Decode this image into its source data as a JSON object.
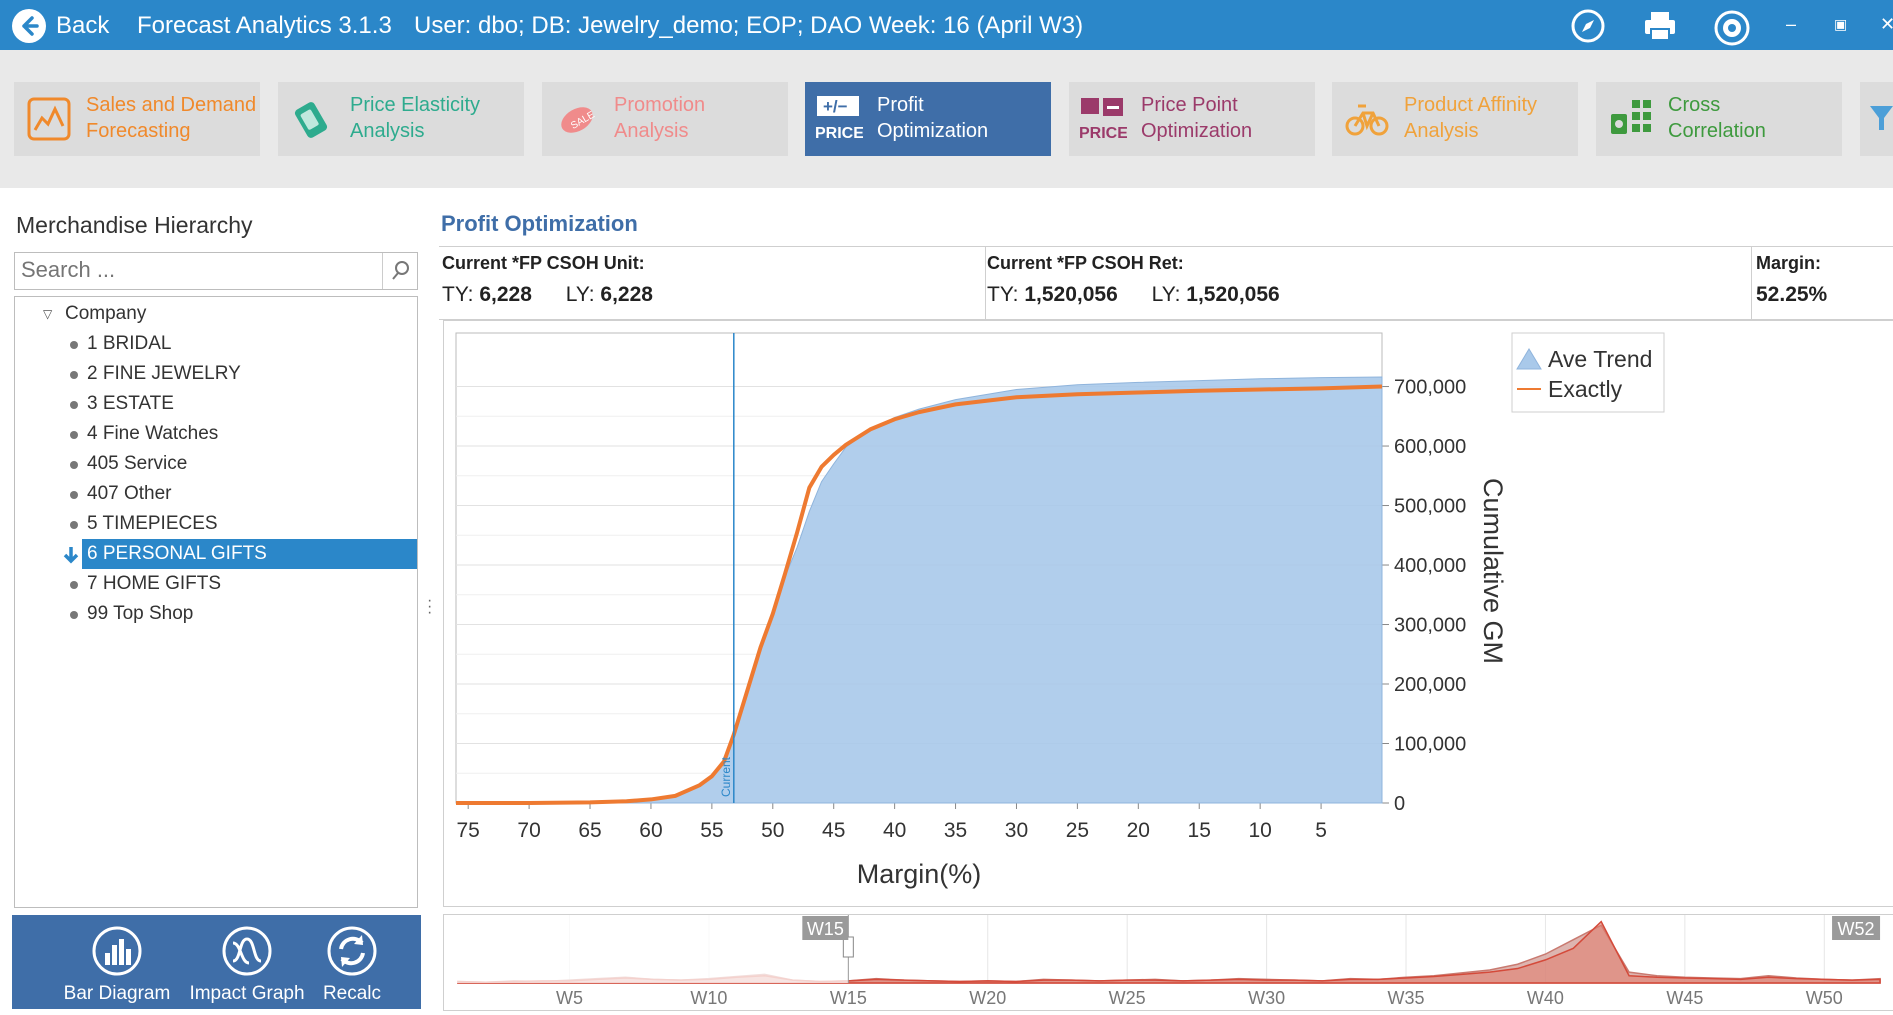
{
  "titlebar": {
    "back_label": "Back",
    "app_title": "Forecast Analytics 3.1.3",
    "context": "User: dbo; DB: Jewelry_demo; EOP; DAO Week: 16 (April W3)"
  },
  "modules": [
    {
      "label": "Sales and Demand\nForecasting",
      "color": "#f0892b",
      "icon": "sales-forecast-icon",
      "active": false
    },
    {
      "label": "Price Elasticity\nAnalysis",
      "color": "#2eab8e",
      "icon": "price-tag-icon",
      "active": false
    },
    {
      "label": "Promotion\nAnalysis",
      "color": "#f08b8b",
      "icon": "sale-tag-icon",
      "active": false
    },
    {
      "label": "Profit\nOptimization",
      "color": "#ffffff",
      "icon": "price-plus-minus-icon",
      "active": true
    },
    {
      "label": "Price Point\nOptimization",
      "color": "#9b3a6a",
      "icon": "price-point-icon",
      "active": false
    },
    {
      "label": "Product Affinity\nAnalysis",
      "color": "#f0a23b",
      "icon": "bicycle-icon",
      "active": false
    },
    {
      "label": "Cross\nCorrelation",
      "color": "#3e9a3e",
      "icon": "cross-correlation-icon",
      "active": false
    }
  ],
  "module_icon_texts": {
    "price": "PRICE",
    "plusminus": "+/−",
    "sale": "SALE"
  },
  "hierarchy": {
    "title": "Merchandise Hierarchy",
    "search_placeholder": "Search ...",
    "root": "Company",
    "items": [
      "1 BRIDAL",
      "2 FINE JEWELRY",
      "3 ESTATE",
      "4 Fine Watches",
      "405 Service",
      "407 Other",
      "5 TIMEPIECES",
      "6 PERSONAL GIFTS",
      "7 HOME GIFTS",
      "99 Top Shop"
    ],
    "selected": "6 PERSONAL GIFTS"
  },
  "toolbar": {
    "bar_diagram": "Bar Diagram",
    "impact_graph": "Impact Graph",
    "recalc": "Recalc"
  },
  "profit": {
    "title": "Profit Optimization",
    "unit_header": "Current *FP CSOH Unit:",
    "ret_header": "Current *FP CSOH Ret:",
    "margin_header": "Margin:",
    "ty_label": "TY:",
    "ly_label": "LY:",
    "unit_ty": "6,228",
    "unit_ly": "6,228",
    "ret_ty": "1,520,056",
    "ret_ly": "1,520,056",
    "margin": "52.25%"
  },
  "chart_data": {
    "type": "area",
    "xlabel": "Margin(%)",
    "ylabel": "Cumulative GM",
    "x_ticks": [
      "75",
      "70",
      "65",
      "60",
      "55",
      "50",
      "45",
      "40",
      "35",
      "30",
      "25",
      "20",
      "15",
      "10",
      "5"
    ],
    "y_ticks": [
      "0",
      "100,000",
      "200,000",
      "300,000",
      "400,000",
      "500,000",
      "600,000",
      "700,000"
    ],
    "xlim": [
      76,
      0
    ],
    "ylim": [
      0,
      790000
    ],
    "current_label": "Current",
    "current_x": 53.2,
    "legend_position": "top-right",
    "series": [
      {
        "name": "Ave Trend",
        "kind": "area",
        "color": "#a9c9ea",
        "x": [
          76,
          70,
          65,
          62,
          60,
          58,
          56,
          55,
          54,
          53.2,
          52,
          51,
          50,
          49,
          48,
          47,
          46,
          45,
          44,
          42,
          40,
          38,
          35,
          30,
          25,
          20,
          15,
          10,
          5,
          0
        ],
        "y": [
          0,
          0,
          1000,
          3000,
          6000,
          12000,
          30000,
          45000,
          70000,
          115000,
          200000,
          265000,
          320000,
          380000,
          430000,
          490000,
          540000,
          570000,
          598000,
          628000,
          648000,
          662000,
          678000,
          695000,
          703000,
          707000,
          710000,
          713000,
          715000,
          716000
        ]
      },
      {
        "name": "Exactly",
        "kind": "line",
        "color": "#ee7a31",
        "x": [
          76,
          70,
          65,
          62,
          60,
          58,
          56,
          55,
          54,
          53.2,
          52,
          51,
          50,
          49,
          48,
          47,
          46,
          45,
          44,
          42,
          40,
          38,
          35,
          30,
          25,
          20,
          15,
          10,
          5,
          0
        ],
        "y": [
          0,
          0,
          1000,
          3000,
          6000,
          12000,
          30000,
          45000,
          70000,
          115000,
          195000,
          262000,
          318000,
          385000,
          455000,
          530000,
          565000,
          585000,
          602000,
          628000,
          645000,
          657000,
          670000,
          682000,
          687000,
          690000,
          693000,
          695000,
          697000,
          700000
        ]
      }
    ]
  },
  "overview": {
    "week_ticks": [
      "W5",
      "W10",
      "W15",
      "W20",
      "W25",
      "W30",
      "W35",
      "W40",
      "W45",
      "W50"
    ],
    "range_start": "W15",
    "range_end": "W52",
    "series": [
      {
        "name": "Ave Trend",
        "color": "#c97a70",
        "values": [
          2,
          1,
          3,
          2,
          4,
          6,
          8,
          5,
          4,
          6,
          9,
          12,
          4,
          2,
          3,
          6,
          4,
          3,
          2,
          3,
          2,
          5,
          4,
          3,
          4,
          5,
          3,
          4,
          6,
          5,
          4,
          3,
          6,
          5,
          8,
          10,
          14,
          18,
          26,
          40,
          60,
          80,
          15,
          10,
          8,
          7,
          6,
          10,
          7,
          5,
          4,
          6
        ]
      },
      {
        "name": "Exactly",
        "color": "#d44a3a",
        "values": [
          2,
          1,
          2,
          3,
          3,
          5,
          7,
          5,
          4,
          5,
          8,
          10,
          4,
          2,
          3,
          5,
          4,
          3,
          2,
          3,
          2,
          4,
          4,
          3,
          4,
          4,
          3,
          4,
          5,
          4,
          4,
          3,
          5,
          5,
          7,
          9,
          12,
          15,
          20,
          32,
          48,
          85,
          10,
          8,
          7,
          6,
          5,
          8,
          6,
          5,
          4,
          5
        ]
      }
    ]
  }
}
